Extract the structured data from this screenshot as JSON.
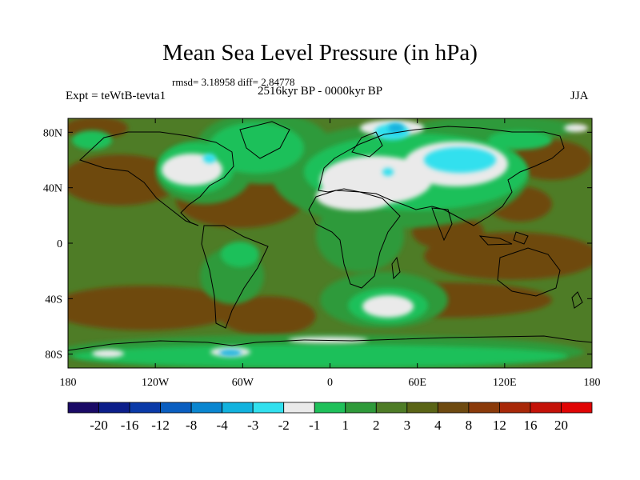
{
  "chart_data": {
    "type": "heatmap",
    "title": "Mean Sea Level Pressure (in hPa)",
    "stats_line": "rmsd= 3.18958 diff= 2.84778",
    "period": "2516kyr BP - 0000kyr BP",
    "experiment": "Expt = teWtB-tevta1",
    "season": "JJA",
    "x_axis": {
      "range": [
        -180,
        180
      ],
      "ticks": [
        -180,
        -120,
        -60,
        0,
        60,
        120,
        180
      ],
      "tick_labels": [
        "180",
        "120W",
        "60W",
        "0",
        "60E",
        "120E",
        "180"
      ]
    },
    "y_axis": {
      "range": [
        -90,
        90
      ],
      "ticks": [
        80,
        40,
        0,
        -40,
        -80
      ],
      "tick_labels": [
        "80N",
        "40N",
        "0",
        "40S",
        "80S"
      ]
    },
    "colorbar": {
      "colors": [
        "#1a0a66",
        "#0c1e8a",
        "#0a3aa8",
        "#0a5ec0",
        "#0a86d0",
        "#12b2de",
        "#32e0ee",
        "#eaeaea",
        "#1fc05a",
        "#2e9a3a",
        "#4e7c26",
        "#5a6416",
        "#6e4a10",
        "#8a3a0a",
        "#a82808",
        "#c41208",
        "#e00404"
      ],
      "labels": [
        "-20",
        "-16",
        "-12",
        "-8",
        "-4",
        "-3",
        "-2",
        "-1",
        "1",
        "2",
        "3",
        "4",
        "8",
        "12",
        "16",
        "20"
      ]
    },
    "regions": [
      {
        "name": "north-atlantic-low-anomaly",
        "lon": -35,
        "lat": 50,
        "level": "1-2",
        "color": "#1fc05a"
      },
      {
        "name": "eurasia-summer-low",
        "lon": 50,
        "lat": 45,
        "level": "-1-1",
        "color": "#eaeaea"
      },
      {
        "name": "central-asia-low",
        "lon": 75,
        "lat": 48,
        "level": "-3--2",
        "color": "#32e0ee"
      },
      {
        "name": "north-america-low",
        "lon": -95,
        "lat": 48,
        "level": "-1-1",
        "color": "#eaeaea"
      },
      {
        "name": "south-indian-ocean",
        "lon": 45,
        "lat": -45,
        "level": "-1-1",
        "color": "#eaeaea"
      },
      {
        "name": "antarctic-low",
        "lon": -65,
        "lat": -82,
        "level": "-4--3",
        "color": "#12b2de"
      }
    ]
  }
}
